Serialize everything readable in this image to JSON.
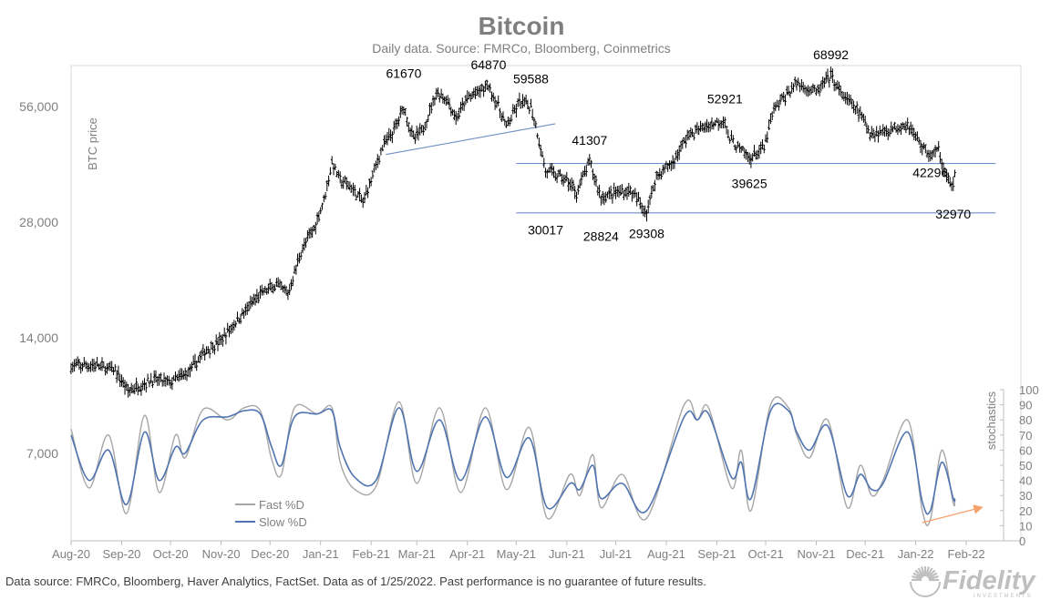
{
  "title": "Bitcoin",
  "subtitle": "Daily data.  Source: FMRCo, Bloomberg, Coinmetrics",
  "footer": "Data source: FMRCo, Bloomberg, Haver Analytics, FactSet. Data as of 1/25/2022. Past performance is no guarantee of future results.",
  "logo": {
    "word": "Fidelity",
    "tag": "INVESTMENTS"
  },
  "chart_data": {
    "type": "line",
    "x_labels": [
      "Aug-20",
      "Sep-20",
      "Oct-20",
      "Nov-20",
      "Dec-20",
      "Jan-21",
      "Feb-21",
      "Mar-21",
      "Apr-21",
      "May-21",
      "Jun-21",
      "Jul-21",
      "Aug-21",
      "Sep-21",
      "Oct-21",
      "Nov-21",
      "Dec-21",
      "Jan-22",
      "Feb-22"
    ],
    "xlim": [
      "2020-08-01",
      "2022-02-25"
    ],
    "price_axis": {
      "label": "BTC price",
      "scale": "log",
      "ylim": [
        3500,
        112000
      ],
      "ticks": [
        "7,000",
        "14,000",
        "28,000",
        "56,000"
      ],
      "tick_values": [
        7000,
        14000,
        28000,
        56000
      ]
    },
    "stochastic_axis": {
      "label": "stochastics",
      "ylim": [
        0,
        100
      ],
      "ticks": [
        "0",
        "10",
        "20",
        "30",
        "40",
        "50",
        "60",
        "70",
        "80",
        "90",
        "100"
      ]
    },
    "price_series": {
      "name": "BTC price",
      "style": "daily OHLC bars",
      "color": "#000000",
      "points": [
        [
          "2020-08-01",
          11800
        ],
        [
          "2020-08-15",
          11900
        ],
        [
          "2020-08-28",
          11500
        ],
        [
          "2020-09-05",
          10200
        ],
        [
          "2020-09-20",
          10900
        ],
        [
          "2020-10-01",
          10700
        ],
        [
          "2020-10-12",
          11400
        ],
        [
          "2020-10-22",
          12900
        ],
        [
          "2020-11-01",
          13800
        ],
        [
          "2020-11-10",
          15400
        ],
        [
          "2020-11-25",
          18200
        ],
        [
          "2020-12-05",
          19200
        ],
        [
          "2020-12-12",
          18200
        ],
        [
          "2020-12-20",
          23500
        ],
        [
          "2020-12-28",
          27000
        ],
        [
          "2021-01-03",
          32000
        ],
        [
          "2021-01-08",
          40000
        ],
        [
          "2021-01-13",
          36000
        ],
        [
          "2021-01-20",
          34500
        ],
        [
          "2021-01-27",
          31500
        ],
        [
          "2021-02-08",
          44000
        ],
        [
          "2021-02-15",
          48500
        ],
        [
          "2021-02-21",
          56000
        ],
        [
          "2021-02-27",
          46000
        ],
        [
          "2021-03-05",
          49000
        ],
        [
          "2021-03-13",
          61000
        ],
        [
          "2021-03-20",
          58000
        ],
        [
          "2021-03-25",
          52000
        ],
        [
          "2021-04-01",
          58800
        ],
        [
          "2021-04-14",
          63500
        ],
        [
          "2021-04-20",
          56000
        ],
        [
          "2021-04-25",
          49500
        ],
        [
          "2021-05-03",
          57500
        ],
        [
          "2021-05-10",
          56000
        ],
        [
          "2021-05-13",
          50000
        ],
        [
          "2021-05-19",
          38000
        ],
        [
          "2021-05-24",
          37500
        ],
        [
          "2021-06-01",
          36000
        ],
        [
          "2021-06-07",
          33500
        ],
        [
          "2021-06-15",
          40200
        ],
        [
          "2021-06-22",
          32500
        ],
        [
          "2021-07-01",
          33500
        ],
        [
          "2021-07-10",
          33800
        ],
        [
          "2021-07-20",
          29800
        ],
        [
          "2021-07-26",
          37000
        ],
        [
          "2021-08-05",
          40000
        ],
        [
          "2021-08-14",
          47000
        ],
        [
          "2021-08-22",
          49000
        ],
        [
          "2021-09-06",
          52000
        ],
        [
          "2021-09-08",
          46500
        ],
        [
          "2021-09-21",
          41000
        ],
        [
          "2021-09-30",
          43800
        ],
        [
          "2021-10-06",
          55000
        ],
        [
          "2021-10-15",
          61000
        ],
        [
          "2021-10-20",
          64500
        ],
        [
          "2021-11-01",
          61000
        ],
        [
          "2021-11-10",
          67500
        ],
        [
          "2021-11-16",
          60500
        ],
        [
          "2021-11-26",
          55000
        ],
        [
          "2021-12-04",
          48000
        ],
        [
          "2021-12-10",
          48000
        ],
        [
          "2021-12-27",
          50500
        ],
        [
          "2022-01-05",
          44000
        ],
        [
          "2022-01-10",
          41800
        ],
        [
          "2022-01-15",
          43000
        ],
        [
          "2022-01-21",
          36000
        ],
        [
          "2022-01-24",
          34500
        ],
        [
          "2022-01-25",
          36600
        ]
      ]
    },
    "price_labels": [
      {
        "date": "2021-02-21",
        "value": 61670,
        "text": "61670",
        "pos": "above"
      },
      {
        "date": "2021-04-14",
        "value": 64870,
        "text": "64870",
        "pos": "above"
      },
      {
        "date": "2021-05-10",
        "value": 59588,
        "text": "59588",
        "pos": "above"
      },
      {
        "date": "2021-06-15",
        "value": 41307,
        "text": "41307",
        "pos": "above"
      },
      {
        "date": "2021-05-19",
        "value": 30017,
        "text": "30017",
        "pos": "below"
      },
      {
        "date": "2021-06-22",
        "value": 28824,
        "text": "28824",
        "pos": "below"
      },
      {
        "date": "2021-07-20",
        "value": 29308,
        "text": "29308",
        "pos": "below"
      },
      {
        "date": "2021-09-06",
        "value": 52921,
        "text": "52921",
        "pos": "above"
      },
      {
        "date": "2021-09-21",
        "value": 39625,
        "text": "39625",
        "pos": "below"
      },
      {
        "date": "2021-11-10",
        "value": 68992,
        "text": "68992",
        "pos": "above"
      },
      {
        "date": "2022-01-10",
        "value": 42296,
        "text": "42296",
        "pos": "below"
      },
      {
        "date": "2022-01-24",
        "value": 32970,
        "text": "32970",
        "pos": "below"
      }
    ],
    "trendlines": [
      {
        "kind": "support-trend",
        "from": [
          "2021-02-10",
          42000
        ],
        "to": [
          "2021-05-25",
          50500
        ],
        "color": "#6f8fc6"
      },
      {
        "kind": "support",
        "from": [
          "2021-05-01",
          39800
        ],
        "to": [
          "2022-02-19",
          39800
        ],
        "color": "#6f8fc6"
      },
      {
        "kind": "support",
        "from": [
          "2021-05-01",
          29600
        ],
        "to": [
          "2022-02-19",
          29600
        ],
        "color": "#6f8fc6"
      }
    ],
    "stochastic_series": [
      {
        "name": "Fast %D",
        "color": "#a6a6a6",
        "points": [
          [
            "2020-08-01",
            74
          ],
          [
            "2020-08-12",
            35
          ],
          [
            "2020-08-24",
            70
          ],
          [
            "2020-09-04",
            18
          ],
          [
            "2020-09-15",
            83
          ],
          [
            "2020-09-24",
            32
          ],
          [
            "2020-10-04",
            70
          ],
          [
            "2020-10-10",
            55
          ],
          [
            "2020-10-21",
            87
          ],
          [
            "2020-11-05",
            80
          ],
          [
            "2020-11-15",
            88
          ],
          [
            "2020-11-25",
            86
          ],
          [
            "2020-12-02",
            54
          ],
          [
            "2020-12-08",
            44
          ],
          [
            "2020-12-16",
            88
          ],
          [
            "2020-12-30",
            84
          ],
          [
            "2021-01-08",
            88
          ],
          [
            "2021-01-13",
            52
          ],
          [
            "2021-01-22",
            34
          ],
          [
            "2021-02-04",
            36
          ],
          [
            "2021-02-18",
            92
          ],
          [
            "2021-03-01",
            38
          ],
          [
            "2021-03-15",
            88
          ],
          [
            "2021-03-28",
            32
          ],
          [
            "2021-04-12",
            88
          ],
          [
            "2021-04-25",
            34
          ],
          [
            "2021-05-09",
            75
          ],
          [
            "2021-05-20",
            15
          ],
          [
            "2021-06-03",
            44
          ],
          [
            "2021-06-09",
            30
          ],
          [
            "2021-06-17",
            57
          ],
          [
            "2021-06-22",
            22
          ],
          [
            "2021-07-05",
            44
          ],
          [
            "2021-07-20",
            15
          ],
          [
            "2021-08-12",
            90
          ],
          [
            "2021-08-20",
            80
          ],
          [
            "2021-08-27",
            88
          ],
          [
            "2021-09-10",
            35
          ],
          [
            "2021-09-16",
            60
          ],
          [
            "2021-09-22",
            20
          ],
          [
            "2021-10-04",
            90
          ],
          [
            "2021-10-15",
            88
          ],
          [
            "2021-10-20",
            70
          ],
          [
            "2021-10-28",
            55
          ],
          [
            "2021-11-08",
            80
          ],
          [
            "2021-11-20",
            22
          ],
          [
            "2021-11-28",
            50
          ],
          [
            "2021-12-05",
            30
          ],
          [
            "2021-12-12",
            40
          ],
          [
            "2021-12-27",
            80
          ],
          [
            "2022-01-05",
            20
          ],
          [
            "2022-01-10",
            14
          ],
          [
            "2022-01-17",
            60
          ],
          [
            "2022-01-24",
            25
          ],
          [
            "2022-01-25",
            28
          ]
        ]
      },
      {
        "name": "Slow %D",
        "color": "#4f74b0",
        "points": [
          [
            "2020-08-01",
            70
          ],
          [
            "2020-08-12",
            40
          ],
          [
            "2020-08-24",
            60
          ],
          [
            "2020-09-04",
            24
          ],
          [
            "2020-09-15",
            72
          ],
          [
            "2020-09-24",
            40
          ],
          [
            "2020-10-04",
            62
          ],
          [
            "2020-10-10",
            58
          ],
          [
            "2020-10-21",
            80
          ],
          [
            "2020-11-05",
            82
          ],
          [
            "2020-11-15",
            86
          ],
          [
            "2020-11-25",
            84
          ],
          [
            "2020-12-02",
            62
          ],
          [
            "2020-12-08",
            50
          ],
          [
            "2020-12-16",
            82
          ],
          [
            "2020-12-30",
            84
          ],
          [
            "2021-01-08",
            86
          ],
          [
            "2021-01-13",
            62
          ],
          [
            "2021-01-22",
            42
          ],
          [
            "2021-02-04",
            40
          ],
          [
            "2021-02-18",
            88
          ],
          [
            "2021-03-01",
            46
          ],
          [
            "2021-03-15",
            80
          ],
          [
            "2021-03-28",
            40
          ],
          [
            "2021-04-12",
            82
          ],
          [
            "2021-04-25",
            42
          ],
          [
            "2021-05-09",
            68
          ],
          [
            "2021-05-20",
            22
          ],
          [
            "2021-06-03",
            38
          ],
          [
            "2021-06-09",
            34
          ],
          [
            "2021-06-17",
            50
          ],
          [
            "2021-06-22",
            28
          ],
          [
            "2021-07-05",
            38
          ],
          [
            "2021-07-20",
            20
          ],
          [
            "2021-08-12",
            82
          ],
          [
            "2021-08-20",
            80
          ],
          [
            "2021-08-27",
            84
          ],
          [
            "2021-09-10",
            42
          ],
          [
            "2021-09-16",
            52
          ],
          [
            "2021-09-22",
            28
          ],
          [
            "2021-10-04",
            86
          ],
          [
            "2021-10-15",
            86
          ],
          [
            "2021-10-20",
            72
          ],
          [
            "2021-10-28",
            60
          ],
          [
            "2021-11-08",
            76
          ],
          [
            "2021-11-20",
            30
          ],
          [
            "2021-11-28",
            44
          ],
          [
            "2021-12-05",
            34
          ],
          [
            "2021-12-12",
            38
          ],
          [
            "2021-12-27",
            72
          ],
          [
            "2022-01-05",
            26
          ],
          [
            "2022-01-10",
            20
          ],
          [
            "2022-01-17",
            52
          ],
          [
            "2022-01-24",
            28
          ],
          [
            "2022-01-25",
            28
          ]
        ]
      }
    ],
    "legend": {
      "placement": "bottom-left",
      "entries": [
        "Fast %D",
        "Slow %D"
      ]
    },
    "annotation_arrow": {
      "from": [
        "2022-01-05",
        12
      ],
      "to": [
        "2022-02-10",
        22
      ],
      "color": "#f4a06a"
    },
    "grid": false
  }
}
